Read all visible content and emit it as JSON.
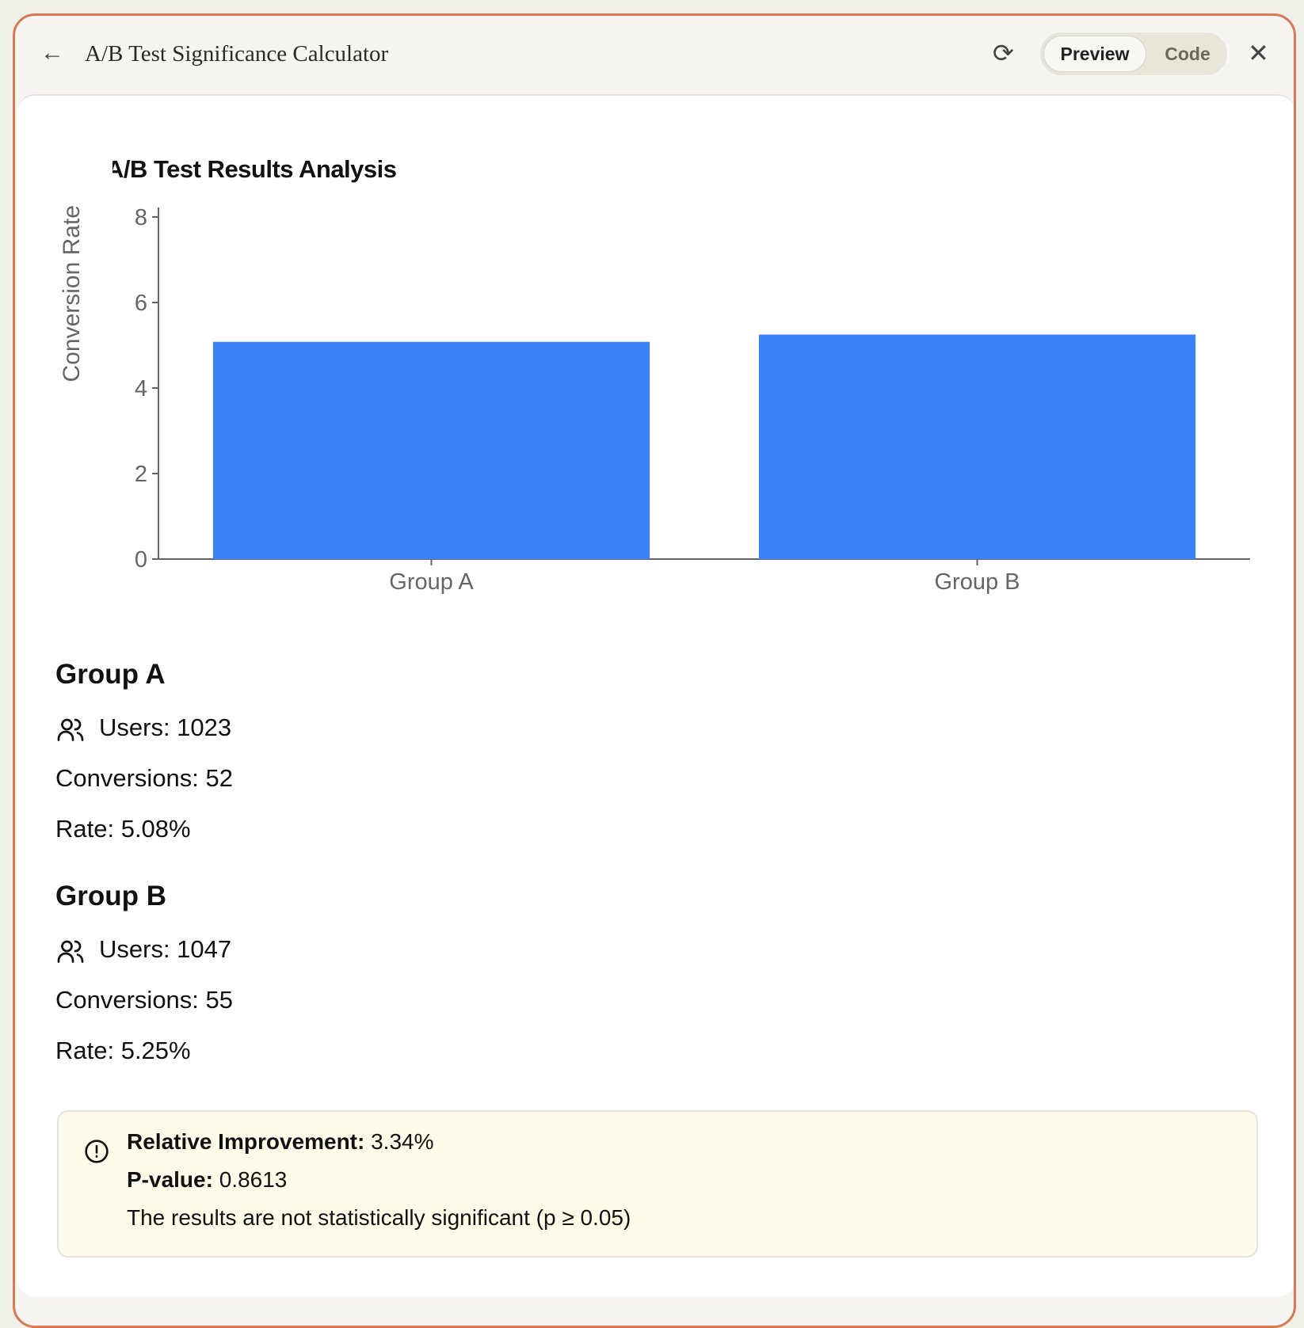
{
  "header": {
    "title": "A/B Test Significance Calculator",
    "preview_label": "Preview",
    "code_label": "Code",
    "back_icon": "arrow-left-icon",
    "refresh_icon": "refresh-icon",
    "close_icon": "close-icon"
  },
  "main": {
    "title": "A/B Test Results Analysis",
    "title_icon": "trending-up-icon"
  },
  "chart_data": {
    "type": "bar",
    "categories": [
      "Group A",
      "Group B"
    ],
    "values": [
      5.08,
      5.25
    ],
    "ylabel": "Conversion Rate",
    "ylim": [
      0,
      8
    ],
    "yticks": [
      "0",
      "2",
      "4",
      "6",
      "8"
    ],
    "bar_color": "#3b82f6",
    "grid": false
  },
  "groups": [
    {
      "name": "Group A",
      "users": "Users: 1023",
      "conversions": "Conversions: 52",
      "rate": "Rate: 5.08%"
    },
    {
      "name": "Group B",
      "users": "Users: 1047",
      "conversions": "Conversions: 55",
      "rate": "Rate: 5.25%"
    }
  ],
  "result": {
    "improvement_label": "Relative Improvement:",
    "improvement_value": " 3.34%",
    "pvalue_label": "P-value:",
    "pvalue_value": " 0.8613",
    "message": "The results are not statistically significant (p ≥ 0.05)",
    "bg_color": "#fefce8"
  }
}
